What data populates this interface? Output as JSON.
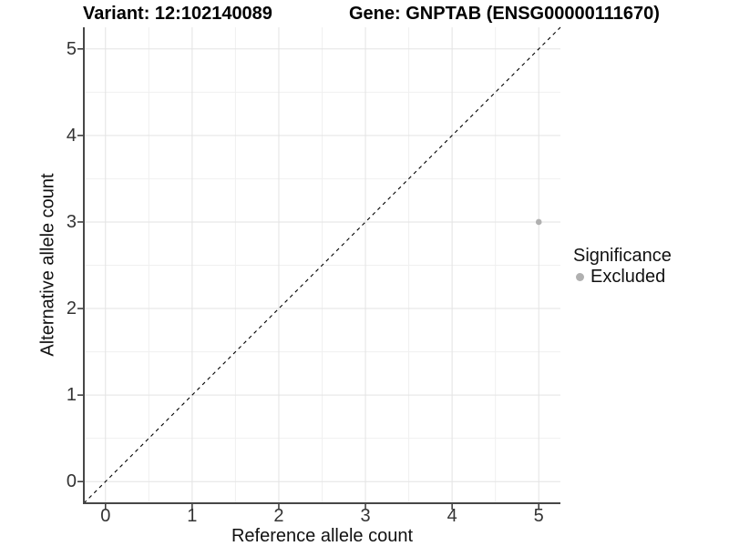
{
  "header": {
    "variant_title": "Variant: 12:102140089",
    "gene_title": "Gene: GNPTAB (ENSG00000111670)"
  },
  "axes": {
    "x_label": "Reference allele count",
    "y_label": "Alternative allele count"
  },
  "legend": {
    "title": "Significance",
    "items": [
      {
        "label": "Excluded",
        "color": "#b0b0b0"
      }
    ]
  },
  "chart_data": {
    "type": "scatter",
    "title": "Variant: 12:102140089 | Gene: GNPTAB (ENSG00000111670)",
    "xlabel": "Reference allele count",
    "ylabel": "Alternative allele count",
    "xlim": [
      -0.25,
      5.25
    ],
    "ylim": [
      -0.25,
      5.25
    ],
    "x_ticks": [
      0,
      1,
      2,
      3,
      4,
      5
    ],
    "y_ticks": [
      0,
      1,
      2,
      3,
      4,
      5
    ],
    "x_minor_ticks": [
      0.5,
      1.5,
      2.5,
      3.5,
      4.5
    ],
    "y_minor_ticks": [
      0.5,
      1.5,
      2.5,
      3.5,
      4.5
    ],
    "grid": true,
    "legend_position": "right",
    "series": [
      {
        "name": "Excluded",
        "color": "#b0b0b0",
        "points": [
          {
            "x": 5,
            "y": 3
          }
        ]
      }
    ],
    "reference_line": {
      "type": "identity",
      "style": "dashed",
      "from": [
        -0.25,
        -0.25
      ],
      "to": [
        5.25,
        5.25
      ]
    }
  }
}
